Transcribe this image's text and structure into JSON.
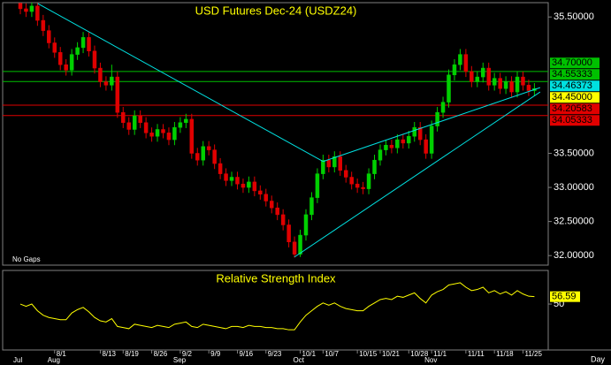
{
  "chart_data": [
    {
      "type": "candlestick",
      "title": "USD Futures Dec-24 (USDZ24)",
      "gap_mode": "No Gaps",
      "x_unit": "Day",
      "categories": [
        null,
        null,
        null,
        null,
        null,
        null,
        "8/1",
        null,
        null,
        null,
        null,
        null,
        null,
        null,
        "8/13",
        null,
        null,
        null,
        "8/19",
        null,
        null,
        null,
        null,
        "8/26",
        null,
        null,
        null,
        null,
        "9/2",
        null,
        null,
        null,
        null,
        "9/9",
        null,
        null,
        null,
        null,
        "9/16",
        null,
        null,
        null,
        null,
        "9/23",
        null,
        null,
        null,
        null,
        null,
        "10/1",
        null,
        null,
        null,
        "10/7",
        null,
        null,
        null,
        null,
        null,
        "10/15",
        null,
        null,
        null,
        "10/21",
        null,
        null,
        null,
        null,
        "10/28",
        null,
        null,
        null,
        "11/1",
        null,
        null,
        null,
        null,
        null,
        "11/11",
        null,
        null,
        null,
        null,
        "11/18",
        null,
        null,
        null,
        null,
        "11/25",
        null,
        null
      ],
      "months": [
        "Jul",
        null,
        null,
        null,
        null,
        null,
        "Aug",
        null,
        null,
        null,
        null,
        null,
        null,
        null,
        null,
        null,
        null,
        null,
        null,
        null,
        null,
        null,
        null,
        null,
        null,
        null,
        null,
        null,
        "Sep",
        null,
        null,
        null,
        null,
        null,
        null,
        null,
        null,
        null,
        null,
        null,
        null,
        null,
        null,
        null,
        null,
        null,
        null,
        null,
        null,
        "Oct",
        null,
        null,
        null,
        null,
        null,
        null,
        null,
        null,
        null,
        null,
        null,
        null,
        null,
        null,
        null,
        null,
        null,
        null,
        null,
        null,
        null,
        null,
        "Nov",
        null,
        null,
        null,
        null,
        null,
        null,
        null,
        null,
        null,
        null,
        null,
        null,
        null,
        null,
        null,
        null,
        null,
        null
      ],
      "open": [
        35.7,
        35.62,
        35.58,
        35.66,
        35.45,
        35.3,
        35.12,
        34.98,
        34.8,
        34.72,
        34.95,
        35.05,
        35.2,
        35.0,
        34.75,
        34.55,
        34.5,
        34.62,
        34.1,
        33.95,
        33.85,
        34.05,
        33.95,
        33.8,
        33.75,
        33.85,
        33.8,
        33.7,
        33.88,
        33.95,
        34.0,
        33.5,
        33.4,
        33.6,
        33.55,
        33.35,
        33.2,
        33.1,
        33.15,
        33.05,
        33.0,
        33.08,
        32.95,
        32.9,
        32.8,
        32.7,
        32.6,
        32.45,
        32.2,
        32.02,
        32.3,
        32.6,
        32.85,
        33.2,
        33.4,
        33.3,
        33.45,
        33.25,
        33.15,
        33.05,
        33.0,
        32.98,
        33.2,
        33.4,
        33.55,
        33.62,
        33.58,
        33.7,
        33.65,
        33.75,
        33.88,
        33.7,
        33.5,
        33.9,
        34.1,
        34.25,
        34.65,
        34.8,
        34.95,
        34.7,
        34.55,
        34.62,
        34.75,
        34.5,
        34.6,
        34.45,
        34.55,
        34.4,
        34.62,
        34.5,
        34.42
      ],
      "high": [
        35.78,
        35.7,
        35.74,
        35.74,
        35.53,
        35.38,
        35.2,
        35.06,
        34.88,
        35.03,
        35.13,
        35.28,
        35.28,
        35.08,
        34.83,
        34.63,
        34.8,
        34.7,
        34.18,
        34.03,
        34.13,
        34.13,
        34.03,
        33.88,
        33.93,
        33.93,
        33.88,
        33.96,
        34.03,
        34.08,
        34.08,
        33.58,
        33.68,
        33.68,
        33.63,
        33.43,
        33.28,
        33.23,
        33.23,
        33.13,
        33.16,
        33.16,
        33.03,
        32.98,
        32.88,
        32.78,
        32.68,
        32.53,
        32.28,
        32.38,
        32.68,
        32.93,
        33.28,
        33.48,
        33.48,
        33.53,
        33.53,
        33.33,
        33.23,
        33.13,
        33.08,
        33.28,
        33.48,
        33.63,
        33.7,
        33.7,
        33.78,
        33.78,
        33.83,
        33.96,
        33.96,
        33.78,
        33.98,
        34.18,
        34.33,
        34.73,
        34.88,
        35.03,
        35.03,
        34.78,
        34.7,
        34.83,
        34.83,
        34.68,
        34.68,
        34.63,
        34.63,
        34.7,
        34.7,
        34.58,
        34.53
      ],
      "low": [
        35.54,
        35.5,
        35.5,
        35.37,
        35.22,
        35.04,
        34.9,
        34.72,
        34.64,
        34.64,
        34.87,
        34.97,
        34.92,
        34.67,
        34.47,
        34.42,
        34.42,
        34.02,
        33.87,
        33.77,
        33.77,
        33.87,
        33.72,
        33.67,
        33.67,
        33.72,
        33.62,
        33.62,
        33.8,
        33.87,
        33.42,
        33.32,
        33.32,
        33.47,
        33.27,
        33.12,
        33.02,
        33.02,
        32.97,
        32.92,
        32.92,
        32.87,
        32.82,
        32.72,
        32.62,
        32.52,
        32.37,
        32.12,
        31.97,
        31.98,
        32.22,
        32.52,
        32.77,
        33.12,
        33.22,
        33.22,
        33.17,
        33.07,
        32.97,
        32.92,
        32.9,
        32.9,
        33.12,
        33.32,
        33.47,
        33.5,
        33.5,
        33.57,
        33.57,
        33.67,
        33.62,
        33.42,
        33.42,
        33.82,
        34.02,
        34.17,
        34.57,
        34.72,
        34.62,
        34.47,
        34.47,
        34.54,
        34.42,
        34.42,
        34.37,
        34.37,
        34.32,
        34.32,
        34.42,
        34.34,
        34.34
      ],
      "close": [
        35.62,
        35.58,
        35.66,
        35.45,
        35.3,
        35.12,
        34.98,
        34.8,
        34.72,
        34.95,
        35.05,
        35.2,
        35.0,
        34.75,
        34.55,
        34.5,
        34.62,
        34.1,
        33.95,
        33.85,
        34.05,
        33.95,
        33.8,
        33.75,
        33.85,
        33.8,
        33.7,
        33.88,
        33.95,
        34.0,
        33.5,
        33.4,
        33.6,
        33.55,
        33.35,
        33.2,
        33.1,
        33.15,
        33.05,
        33.0,
        33.08,
        32.95,
        32.9,
        32.8,
        32.7,
        32.6,
        32.45,
        32.2,
        32.02,
        32.3,
        32.6,
        32.85,
        33.2,
        33.4,
        33.3,
        33.45,
        33.25,
        33.15,
        33.05,
        33.0,
        32.98,
        33.2,
        33.4,
        33.55,
        33.62,
        33.58,
        33.7,
        33.65,
        33.75,
        33.88,
        33.7,
        33.5,
        33.9,
        34.1,
        34.25,
        34.65,
        34.8,
        34.95,
        34.7,
        34.55,
        34.62,
        34.75,
        34.5,
        34.6,
        34.45,
        34.55,
        34.4,
        34.62,
        34.5,
        34.42,
        34.45
      ],
      "up_color": "#00d000",
      "down_color": "#e00000",
      "ylim": [
        31.86,
        35.71
      ],
      "yticks": [
        {
          "value": 35.5,
          "label": "35.50000"
        },
        {
          "value": 33.5,
          "label": "33.50000"
        },
        {
          "value": 33,
          "label": "33.00000"
        },
        {
          "value": 32.5,
          "label": "32.50000"
        },
        {
          "value": 32,
          "label": "32.00000"
        }
      ],
      "levels": [
        {
          "value": 34.7,
          "label": "34.70000",
          "color": "#00c000",
          "line": true
        },
        {
          "value": 34.55333,
          "label": "34.55333",
          "color": "#00c000",
          "line": true
        },
        {
          "value": 34.46373,
          "label": "34.46373",
          "color": "#00e0e0",
          "line": false
        },
        {
          "value": 34.45,
          "label": "34.45000",
          "color": "#ffff00",
          "line": false
        },
        {
          "value": 34.20583,
          "label": "34.20583",
          "color": "#e00000",
          "line": true
        },
        {
          "value": 34.05333,
          "label": "34.05333",
          "color": "#e00000",
          "line": true
        }
      ],
      "trendline_color": "#00e0e0",
      "trendlines": [
        {
          "x": [
            3,
            53
          ],
          "y": [
            35.7,
            33.38
          ]
        },
        {
          "x": [
            53,
            91
          ],
          "y": [
            33.38,
            34.46373
          ]
        },
        {
          "x": [
            48,
            91
          ],
          "y": [
            31.98,
            34.4
          ]
        }
      ]
    },
    {
      "type": "line",
      "title": "Relative Strength Index",
      "color": "#ffff00",
      "values": [
        50,
        48,
        50,
        44,
        40,
        38,
        37,
        36,
        36,
        42,
        45,
        47,
        43,
        38,
        35,
        34,
        37,
        30,
        29,
        28,
        32,
        31,
        30,
        29,
        31,
        30,
        29,
        32,
        33,
        34,
        30,
        29,
        32,
        31,
        30,
        29,
        28,
        30,
        30,
        29,
        31,
        30,
        30,
        29,
        29,
        28,
        28,
        27,
        27,
        34,
        40,
        44,
        48,
        51,
        49,
        51,
        48,
        46,
        45,
        44,
        44,
        48,
        51,
        54,
        55,
        54,
        57,
        56,
        58,
        60,
        55,
        51,
        58,
        61,
        63,
        67,
        68,
        69,
        65,
        62,
        63,
        65,
        60,
        62,
        59,
        61,
        58,
        62,
        59,
        57,
        56.59
      ],
      "ylim": [
        9,
        80
      ],
      "yticks": [
        50
      ]
    }
  ]
}
